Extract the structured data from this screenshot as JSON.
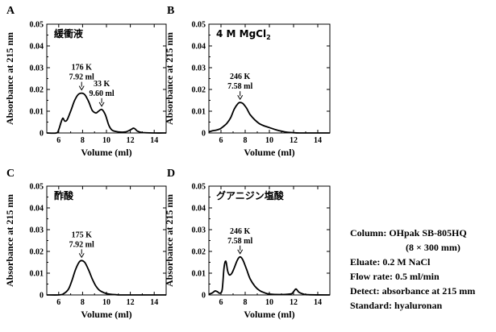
{
  "chart_data": [
    {
      "type": "line",
      "panel_letter": "A",
      "condition_label": "緩衝液",
      "xlabel": "Volume (ml)",
      "ylabel": "Absorbance at 215 nm",
      "xlim": [
        5,
        15
      ],
      "ylim": [
        0,
        0.05
      ],
      "x_ticks": [
        6,
        8,
        10,
        12,
        14
      ],
      "x_tick_labels": [
        "6",
        "8",
        "10",
        "12",
        "14"
      ],
      "y_ticks": [
        0,
        0.01,
        0.02,
        0.03,
        0.04,
        0.05
      ],
      "y_tick_labels": [
        "0",
        "0.01",
        "0.02",
        "0.03",
        "0.04",
        "0.05"
      ],
      "grid": false,
      "series": [
        {
          "x": [
            5.0,
            5.8,
            6.0,
            6.2,
            6.35,
            6.5,
            6.7,
            7.0,
            7.3,
            7.6,
            7.92,
            8.2,
            8.5,
            8.8,
            9.1,
            9.3,
            9.6,
            9.9,
            10.2,
            10.5,
            11.0,
            11.6,
            12.0,
            12.3,
            12.6,
            13.0,
            14.0,
            15.0
          ],
          "y": [
            0.0,
            0.0,
            0.0015,
            0.005,
            0.0068,
            0.0055,
            0.006,
            0.01,
            0.0145,
            0.0175,
            0.0183,
            0.0175,
            0.0145,
            0.0105,
            0.0092,
            0.0098,
            0.0108,
            0.0085,
            0.0035,
            0.0012,
            0.0005,
            0.0005,
            0.0014,
            0.0022,
            0.0008,
            0.0002,
            0.0,
            0.0
          ]
        }
      ],
      "annotations": [
        {
          "lines": [
            "176 K",
            "7.92 ml"
          ],
          "x": 7.92,
          "y": 0.0183
        },
        {
          "lines": [
            "33 K",
            "9.60 ml"
          ],
          "x": 9.6,
          "y": 0.0108
        }
      ]
    },
    {
      "type": "line",
      "panel_letter": "B",
      "condition_label": "4 M MgCl",
      "condition_subscript": "2",
      "xlabel": "Volume (ml)",
      "ylabel": "Absorbance at 215 nm",
      "xlim": [
        5,
        15
      ],
      "ylim": [
        0,
        0.05
      ],
      "x_ticks": [
        6,
        8,
        10,
        12,
        14
      ],
      "x_tick_labels": [
        "6",
        "8",
        "10",
        "12",
        "14"
      ],
      "y_ticks": [
        0,
        0.01,
        0.02,
        0.03,
        0.04,
        0.05
      ],
      "y_tick_labels": [
        "0",
        "0.01",
        "0.02",
        "0.03",
        "0.04",
        "0.05"
      ],
      "grid": false,
      "series": [
        {
          "x": [
            5.0,
            5.3,
            5.6,
            5.9,
            6.2,
            6.5,
            6.8,
            7.1,
            7.4,
            7.58,
            7.8,
            8.1,
            8.4,
            8.8,
            9.2,
            9.6,
            10.0,
            10.5,
            11.0,
            11.5,
            12.0,
            12.5,
            13.0,
            15.0
          ],
          "y": [
            0.0005,
            0.001,
            0.0013,
            0.0018,
            0.003,
            0.0045,
            0.007,
            0.011,
            0.0135,
            0.014,
            0.0136,
            0.0115,
            0.0085,
            0.006,
            0.0042,
            0.0032,
            0.0025,
            0.0015,
            0.0008,
            0.0003,
            0.0001,
            0.0,
            0.0,
            0.0
          ]
        }
      ],
      "annotations": [
        {
          "lines": [
            "246 K",
            "7.58 ml"
          ],
          "x": 7.58,
          "y": 0.014
        }
      ]
    },
    {
      "type": "line",
      "panel_letter": "C",
      "condition_label": "酢酸",
      "xlabel": "Volume (ml)",
      "ylabel": "Absorbance at 215 nm",
      "xlim": [
        5,
        15
      ],
      "ylim": [
        0,
        0.05
      ],
      "x_ticks": [
        6,
        8,
        10,
        12,
        14
      ],
      "x_tick_labels": [
        "6",
        "8",
        "10",
        "12",
        "14"
      ],
      "y_ticks": [
        0,
        0.01,
        0.02,
        0.03,
        0.04,
        0.05
      ],
      "y_tick_labels": [
        "0",
        "0.01",
        "0.02",
        "0.03",
        "0.04",
        "0.05"
      ],
      "grid": false,
      "series": [
        {
          "x": [
            5.0,
            6.0,
            6.4,
            6.8,
            7.1,
            7.4,
            7.7,
            7.92,
            8.2,
            8.5,
            8.8,
            9.1,
            9.4,
            9.8,
            10.2,
            10.8,
            11.5,
            15.0
          ],
          "y": [
            0.0,
            0.0,
            0.0005,
            0.0025,
            0.0065,
            0.0115,
            0.015,
            0.0158,
            0.0148,
            0.0115,
            0.0075,
            0.0042,
            0.0022,
            0.001,
            0.0004,
            0.0001,
            0.0,
            0.0
          ]
        }
      ],
      "annotations": [
        {
          "lines": [
            "175 K",
            "7.92 ml"
          ],
          "x": 7.92,
          "y": 0.0158
        }
      ]
    },
    {
      "type": "line",
      "panel_letter": "D",
      "condition_label": "グアニジン塩酸",
      "xlabel": "Volume (ml)",
      "ylabel": "Absorbance at 215 nm",
      "xlim": [
        5,
        15
      ],
      "ylim": [
        0,
        0.05
      ],
      "x_ticks": [
        6,
        8,
        10,
        12,
        14
      ],
      "x_tick_labels": [
        "6",
        "8",
        "10",
        "12",
        "14"
      ],
      "y_ticks": [
        0,
        0.01,
        0.02,
        0.03,
        0.04,
        0.05
      ],
      "y_tick_labels": [
        "0",
        "0.01",
        "0.02",
        "0.03",
        "0.04",
        "0.05"
      ],
      "grid": false,
      "series": [
        {
          "x": [
            5.0,
            5.3,
            5.5,
            5.7,
            5.9,
            6.1,
            6.25,
            6.4,
            6.55,
            6.7,
            6.9,
            7.1,
            7.35,
            7.58,
            7.8,
            8.1,
            8.4,
            8.8,
            9.2,
            9.6,
            10.0,
            11.0,
            11.8,
            12.0,
            12.2,
            12.45,
            12.8,
            13.2,
            15.0
          ],
          "y": [
            0.0003,
            0.001,
            0.0018,
            0.0015,
            0.0008,
            0.0025,
            0.0125,
            0.0155,
            0.011,
            0.0092,
            0.01,
            0.0125,
            0.016,
            0.0175,
            0.0162,
            0.012,
            0.0075,
            0.004,
            0.002,
            0.001,
            0.0004,
            0.0002,
            0.0005,
            0.0015,
            0.0027,
            0.0012,
            0.0004,
            0.0001,
            0.0
          ]
        }
      ],
      "annotations": [
        {
          "lines": [
            "246 K",
            "7.58 ml"
          ],
          "x": 7.58,
          "y": 0.0175
        }
      ]
    }
  ],
  "conditions": {
    "lines": [
      "Column: OHpak SB-805HQ",
      "(8 × 300 mm)",
      "Eluate: 0.2 M NaCl",
      "Flow rate: 0.5 ml/min",
      "Detect: absorbance at 215 mm",
      "Standard: hyaluronan"
    ]
  }
}
